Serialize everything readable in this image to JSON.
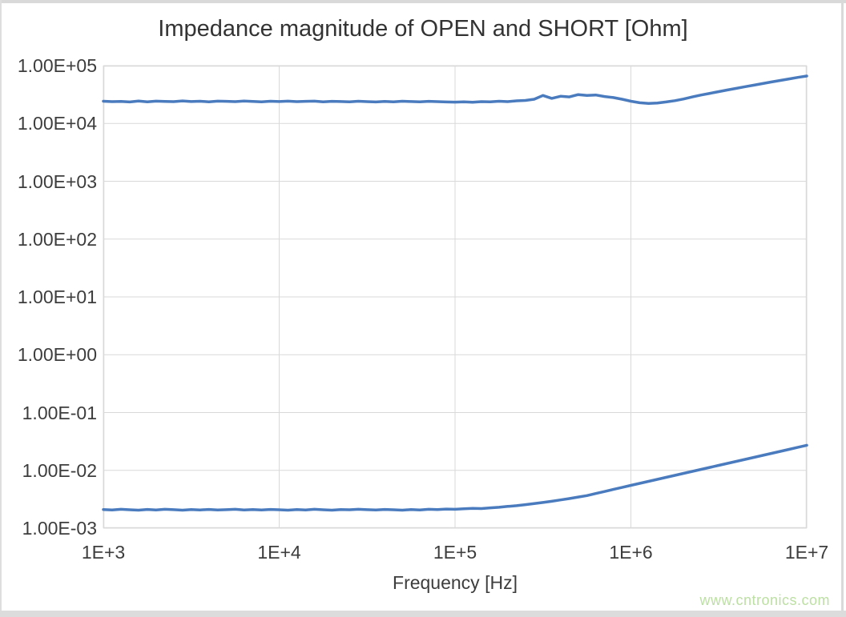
{
  "chart_data": {
    "type": "line",
    "title": "Impedance magnitude of OPEN and SHORT [Ohm]",
    "xlabel": "Frequency [Hz]",
    "ylabel": "",
    "grid": true,
    "legend": "none",
    "line_color": "#4a7bbe",
    "x_axis": {
      "scale": "log",
      "min": 1000,
      "max": 10000000,
      "tick_labels": [
        "1E+3",
        "1E+4",
        "1E+5",
        "1E+6",
        "1E+7"
      ],
      "tick_values": [
        1000,
        10000,
        100000,
        1000000,
        10000000
      ]
    },
    "y_axis": {
      "scale": "log",
      "min": 0.001,
      "max": 100000,
      "tick_labels": [
        "1.00E+05",
        "1.00E+04",
        "1.00E+03",
        "1.00E+02",
        "1.00E+01",
        "1.00E+00",
        "1.00E-01",
        "1.00E-02",
        "1.00E-03"
      ],
      "tick_values": [
        100000,
        10000,
        1000,
        100,
        10,
        1,
        0.1,
        0.01,
        0.001
      ]
    },
    "x": [
      1000,
      1122,
      1259,
      1413,
      1585,
      1778,
      1995,
      2239,
      2512,
      2818,
      3162,
      3548,
      3981,
      4467,
      5012,
      5623,
      6310,
      7079,
      7943,
      8913,
      10000,
      11220,
      12590,
      14130,
      15850,
      17780,
      19950,
      22390,
      25120,
      28180,
      31620,
      35480,
      39810,
      44670,
      50120,
      56230,
      63100,
      70790,
      79430,
      89130,
      100000,
      112200,
      125900,
      141300,
      158500,
      177800,
      199500,
      223900,
      251200,
      281800,
      316200,
      354800,
      398100,
      446700,
      501200,
      562300,
      631000,
      707900,
      794300,
      891300,
      1000000,
      1122000,
      1259000,
      1413000,
      1585000,
      1778000,
      1995000,
      2239000,
      2512000,
      2818000,
      3162000,
      3548000,
      3981000,
      4467000,
      5012000,
      5623000,
      6310000,
      7079000,
      7943000,
      8913000,
      10000000
    ],
    "series": [
      {
        "name": "OPEN",
        "values": [
          24200,
          23800,
          24000,
          23500,
          24400,
          23700,
          24300,
          24000,
          23800,
          24500,
          23900,
          24200,
          23700,
          24300,
          24100,
          23800,
          24400,
          24000,
          23600,
          24200,
          23900,
          24300,
          23800,
          24100,
          24300,
          23700,
          24100,
          23900,
          23600,
          24200,
          23800,
          23500,
          24000,
          23700,
          24200,
          23900,
          23600,
          24100,
          23800,
          23500,
          23400,
          23600,
          23200,
          23800,
          23600,
          24200,
          23800,
          24600,
          25000,
          26200,
          30500,
          27200,
          29500,
          28800,
          31500,
          30500,
          31000,
          29200,
          28000,
          26200,
          24200,
          22800,
          22200,
          22600,
          23500,
          24800,
          26500,
          28800,
          31000,
          33200,
          35500,
          38000,
          40500,
          43200,
          46000,
          49000,
          52200,
          55500,
          59000,
          62500,
          66000
        ]
      },
      {
        "name": "SHORT",
        "values": [
          0.0021,
          0.00206,
          0.00212,
          0.00208,
          0.00205,
          0.00211,
          0.00207,
          0.00212,
          0.00209,
          0.00205,
          0.0021,
          0.00207,
          0.00211,
          0.00206,
          0.00209,
          0.00212,
          0.00207,
          0.0021,
          0.00206,
          0.00211,
          0.00208,
          0.00205,
          0.0021,
          0.00207,
          0.00212,
          0.00208,
          0.00205,
          0.0021,
          0.00208,
          0.00212,
          0.00209,
          0.00206,
          0.00211,
          0.00208,
          0.00205,
          0.0021,
          0.00207,
          0.00212,
          0.0021,
          0.00214,
          0.00212,
          0.00216,
          0.0022,
          0.00218,
          0.00225,
          0.0023,
          0.00238,
          0.00245,
          0.00255,
          0.00266,
          0.00278,
          0.00292,
          0.00308,
          0.00325,
          0.00345,
          0.00366,
          0.00397,
          0.00431,
          0.00467,
          0.00507,
          0.0055,
          0.00596,
          0.00645,
          0.00699,
          0.00757,
          0.0082,
          0.00888,
          0.00961,
          0.01041,
          0.01128,
          0.01221,
          0.01323,
          0.01433,
          0.01552,
          0.01681,
          0.0182,
          0.01971,
          0.02135,
          0.02312,
          0.02504,
          0.02712
        ]
      }
    ]
  },
  "watermark": {
    "text": "www.cntronics.com",
    "color": "#bcdfa3"
  },
  "colors": {
    "background": "#ffffff",
    "gridline": "#d9d9d9",
    "plot_border": "#d9d9d9",
    "frame": "#d9d9d9",
    "tick_text": "#3d3d3d",
    "title_text": "#333333"
  }
}
